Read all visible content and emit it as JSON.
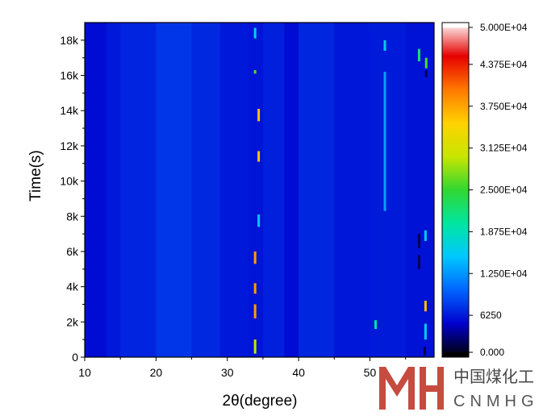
{
  "chart_data": {
    "type": "heatmap",
    "xlabel": "2θ(degree)",
    "ylabel": "Time(s)",
    "xlim": [
      10,
      59
    ],
    "ylim": [
      0,
      19000
    ],
    "x_ticks": [
      10,
      20,
      30,
      40,
      50
    ],
    "x_tick_labels": [
      "10",
      "20",
      "30",
      "40",
      "50"
    ],
    "y_ticks": [
      0,
      2000,
      4000,
      6000,
      8000,
      10000,
      12000,
      14000,
      16000,
      18000
    ],
    "y_tick_labels": [
      "0",
      "2k",
      "4k",
      "6k",
      "8k",
      "10k",
      "12k",
      "14k",
      "16k",
      "18k"
    ],
    "colorbar": {
      "min": 0,
      "max": 50000,
      "tick_values": [
        0,
        6250,
        12500,
        18750,
        25000,
        31250,
        37500,
        43750,
        50000
      ],
      "tick_labels": [
        "0.000",
        "6250",
        "1.250E+04",
        "1.875E+04",
        "2.500E+04",
        "3.125E+04",
        "3.750E+04",
        "4.375E+04",
        "5.000E+04"
      ],
      "colors": [
        "#000000",
        "#0000cd",
        "#0064ff",
        "#00c8ff",
        "#00e6a0",
        "#32d732",
        "#c8e600",
        "#ffd200",
        "#ff7800",
        "#e60000",
        "#ffffff"
      ]
    },
    "background_intensity": 6500,
    "diffraction_peaks": [
      {
        "x": 33.9,
        "t_start": 200,
        "t_end": 1000,
        "intensity": 30000
      },
      {
        "x": 33.9,
        "t_start": 2200,
        "t_end": 3000,
        "intensity": 38000
      },
      {
        "x": 33.9,
        "t_start": 3600,
        "t_end": 4200,
        "intensity": 38000
      },
      {
        "x": 33.9,
        "t_start": 5300,
        "t_end": 6000,
        "intensity": 38000
      },
      {
        "x": 34.4,
        "t_start": 7400,
        "t_end": 8100,
        "intensity": 15000
      },
      {
        "x": 34.4,
        "t_start": 11100,
        "t_end": 11700,
        "intensity": 36000
      },
      {
        "x": 34.4,
        "t_start": 13400,
        "t_end": 14100,
        "intensity": 36000
      },
      {
        "x": 33.9,
        "t_start": 16100,
        "t_end": 16300,
        "intensity": 26000
      },
      {
        "x": 33.9,
        "t_start": 18100,
        "t_end": 18700,
        "intensity": 16000
      },
      {
        "x": 52.1,
        "t_start": 8300,
        "t_end": 16200,
        "intensity": 13000
      },
      {
        "x": 52.1,
        "t_start": 17400,
        "t_end": 18000,
        "intensity": 16000
      },
      {
        "x": 50.8,
        "t_start": 1600,
        "t_end": 2100,
        "intensity": 20000
      },
      {
        "x": 56.9,
        "t_start": 5000,
        "t_end": 5800,
        "intensity": 2000
      },
      {
        "x": 56.9,
        "t_start": 6200,
        "t_end": 7000,
        "intensity": 2000
      },
      {
        "x": 56.9,
        "t_start": 16800,
        "t_end": 17500,
        "intensity": 22000
      },
      {
        "x": 57.8,
        "t_start": 1000,
        "t_end": 1900,
        "intensity": 16000
      },
      {
        "x": 57.8,
        "t_start": 2600,
        "t_end": 3200,
        "intensity": 36000
      },
      {
        "x": 57.8,
        "t_start": 6600,
        "t_end": 7200,
        "intensity": 16000
      },
      {
        "x": 57.9,
        "t_start": 15900,
        "t_end": 16300,
        "intensity": 2000
      },
      {
        "x": 57.9,
        "t_start": 16400,
        "t_end": 17000,
        "intensity": 26000
      },
      {
        "x": 57.7,
        "t_start": 100,
        "t_end": 600,
        "intensity": 2000
      }
    ],
    "background_bands": [
      {
        "x_start": 10,
        "x_end": 13,
        "intensity": 5600
      },
      {
        "x_start": 13,
        "x_end": 15,
        "intensity": 6200
      },
      {
        "x_start": 15,
        "x_end": 20,
        "intensity": 6800
      },
      {
        "x_start": 20,
        "x_end": 25,
        "intensity": 7700
      },
      {
        "x_start": 25,
        "x_end": 29,
        "intensity": 7000
      },
      {
        "x_start": 29,
        "x_end": 33,
        "intensity": 6200
      },
      {
        "x_start": 33,
        "x_end": 35,
        "intensity": 6000
      },
      {
        "x_start": 35,
        "x_end": 38,
        "intensity": 6600
      },
      {
        "x_start": 38,
        "x_end": 40,
        "intensity": 5600
      },
      {
        "x_start": 40,
        "x_end": 45,
        "intensity": 6900
      },
      {
        "x_start": 45,
        "x_end": 50,
        "intensity": 6100
      },
      {
        "x_start": 50,
        "x_end": 55,
        "intensity": 6300
      },
      {
        "x_start": 55,
        "x_end": 59,
        "intensity": 5900
      }
    ]
  },
  "watermark": {
    "chinese": "中国煤化工",
    "english": "CNMHG"
  }
}
